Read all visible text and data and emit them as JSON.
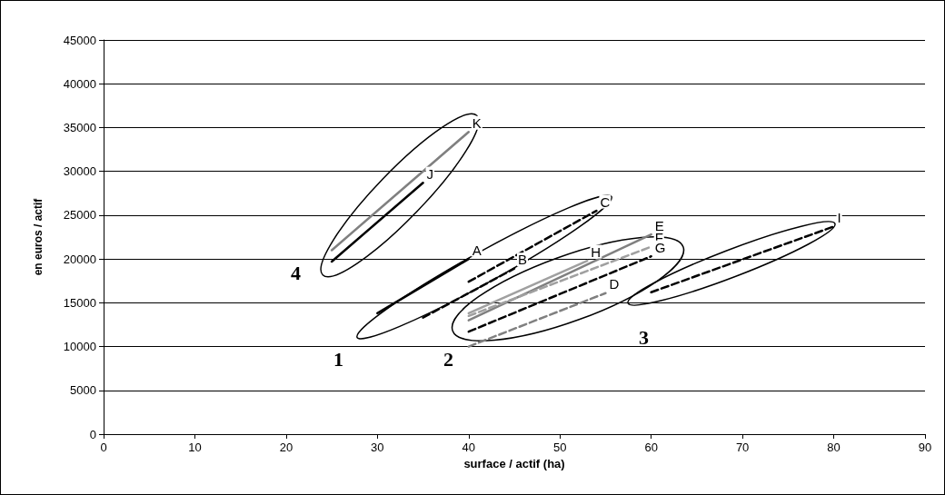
{
  "chart_data": {
    "type": "line",
    "xlabel": "surface / actif (ha)",
    "ylabel": "en euros / actif",
    "xlim": [
      0,
      90
    ],
    "xticks": [
      0,
      10,
      20,
      30,
      40,
      50,
      60,
      70,
      80,
      90
    ],
    "ylim": [
      0,
      45000
    ],
    "yticks": [
      0,
      5000,
      10000,
      15000,
      20000,
      25000,
      30000,
      35000,
      40000,
      45000
    ],
    "grid": "y",
    "legend": false,
    "marker": "none",
    "series": [
      {
        "name": "A",
        "color": "#000000",
        "line_style": "solid",
        "x": [
          30,
          40
        ],
        "values": [
          13800,
          20000
        ]
      },
      {
        "name": "B",
        "color": "#000000",
        "line_style": "dashed",
        "x": [
          35,
          45
        ],
        "values": [
          13300,
          18900
        ]
      },
      {
        "name": "C",
        "color": "#000000",
        "line_style": "dashed",
        "x": [
          40,
          54
        ],
        "values": [
          17400,
          25500
        ]
      },
      {
        "name": "D",
        "color": "#808080",
        "line_style": "dashed",
        "x": [
          40,
          55
        ],
        "values": [
          10000,
          16100
        ]
      },
      {
        "name": "E",
        "color": "#808080",
        "line_style": "solid",
        "x": [
          40,
          60
        ],
        "values": [
          13000,
          22800
        ]
      },
      {
        "name": "F",
        "color": "#a0a0a0",
        "line_style": "dashed",
        "x": [
          40,
          60
        ],
        "values": [
          13500,
          21400
        ]
      },
      {
        "name": "G",
        "color": "#000000",
        "line_style": "dashed",
        "x": [
          40,
          60
        ],
        "values": [
          11700,
          20300
        ]
      },
      {
        "name": "H",
        "color": "#a0a0a0",
        "line_style": "solid",
        "x": [
          40,
          53
        ],
        "values": [
          13800,
          19800
        ]
      },
      {
        "name": "I",
        "color": "#000000",
        "line_style": "dashed",
        "x": [
          60,
          80
        ],
        "values": [
          16200,
          23700
        ]
      },
      {
        "name": "J",
        "color": "#000000",
        "line_style": "solid",
        "x": [
          25,
          35
        ],
        "values": [
          19700,
          28700
        ]
      },
      {
        "name": "K",
        "color": "#808080",
        "line_style": "solid",
        "x": [
          25,
          40
        ],
        "values": [
          21000,
          34500
        ]
      }
    ],
    "annotations": [
      "4",
      "1",
      "2",
      "3"
    ]
  }
}
